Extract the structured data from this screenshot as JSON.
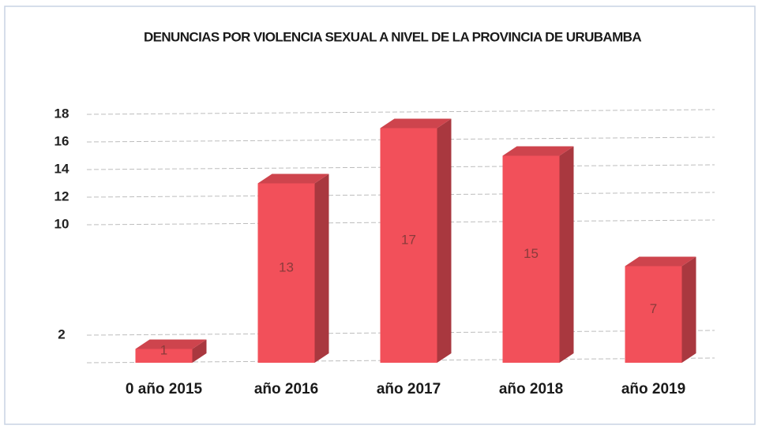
{
  "chart_data": {
    "type": "bar3d",
    "title": "DENUNCIAS POR VIOLENCIA SEXUAL A NIVEL DE LA PROVINCIA DE URUBAMBA",
    "categories": [
      "0 año 2015",
      "año 2016",
      "año 2017",
      "año 2018",
      "año 2019"
    ],
    "values": [
      1,
      13,
      17,
      15,
      7
    ],
    "color": "#f2505a",
    "ylim": [
      0,
      20
    ],
    "yticks": [
      2,
      10,
      12,
      14,
      16,
      18
    ],
    "grid": true
  }
}
